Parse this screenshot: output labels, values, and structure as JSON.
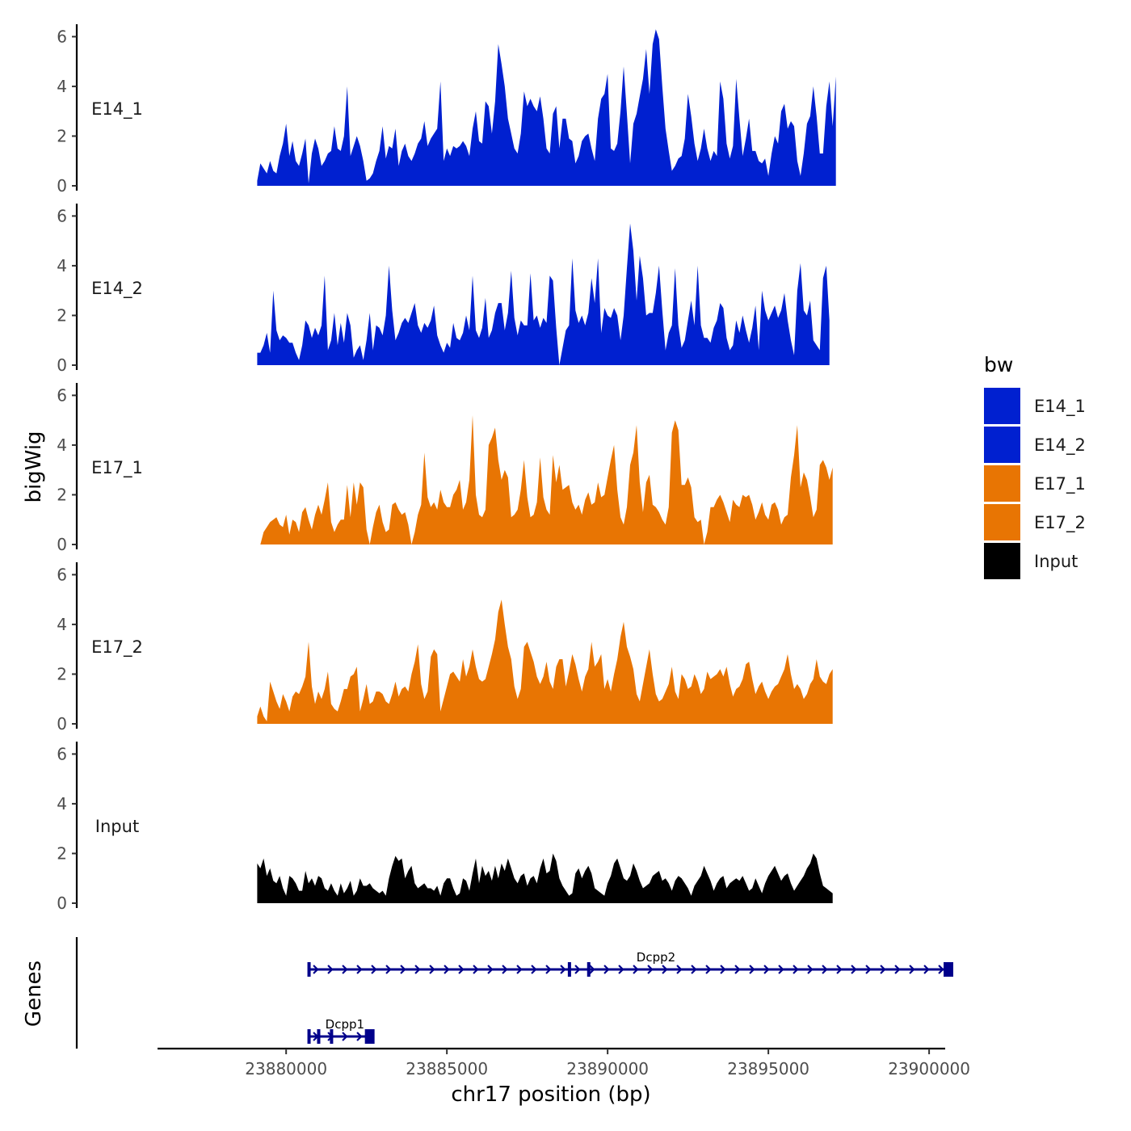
{
  "chart_data": {
    "type": "area",
    "title": "",
    "xlabel": "chr17 position (bp)",
    "ylabel": "bigWig",
    "genes_label": "Genes",
    "xlim": [
      23876000,
      23900500
    ],
    "ylim": [
      0,
      6.5
    ],
    "x_ticks": [
      23880000,
      23885000,
      23890000,
      23895000,
      23900000
    ],
    "x_tick_labels": [
      "23880000",
      "23885000",
      "23890000",
      "23895000",
      "23900000"
    ],
    "y_ticks": [
      0,
      2,
      4,
      6
    ],
    "y_tick_labels": [
      "0",
      "2",
      "4",
      "6"
    ],
    "x_start": 23879100,
    "x_step": 100,
    "legend": {
      "title": "bw",
      "position": "right",
      "entries": [
        {
          "label": "E14_1",
          "color": "#0020d0"
        },
        {
          "label": "E14_2",
          "color": "#0020d0"
        },
        {
          "label": "E17_1",
          "color": "#e87503"
        },
        {
          "label": "E17_2",
          "color": "#e87503"
        },
        {
          "label": "Input",
          "color": "#000000"
        }
      ]
    },
    "series": [
      {
        "name": "E14_1",
        "color": "#0020d0",
        "values": [
          0.2,
          0.9,
          0.7,
          0.5,
          1.0,
          0.6,
          0.5,
          1.2,
          1.7,
          2.5,
          1.2,
          1.8,
          1.0,
          0.8,
          1.3,
          1.9,
          0.1,
          1.3,
          1.9,
          1.5,
          0.8,
          1.0,
          1.3,
          1.4,
          2.4,
          1.5,
          1.4,
          2.0,
          4.0,
          1.2,
          1.6,
          2.0,
          1.6,
          1.0,
          0.2,
          0.3,
          0.5,
          1.0,
          1.4,
          2.4,
          1.1,
          1.6,
          1.5,
          2.3,
          0.8,
          1.4,
          1.7,
          1.2,
          1.0,
          1.3,
          1.7,
          1.9,
          2.6,
          1.6,
          1.9,
          2.1,
          2.3,
          4.2,
          1.0,
          1.5,
          1.2,
          1.6,
          1.5,
          1.6,
          1.8,
          1.6,
          1.2,
          2.3,
          3.0,
          1.8,
          1.7,
          3.4,
          3.2,
          2.1,
          3.4,
          5.7,
          4.9,
          4.0,
          2.7,
          2.1,
          1.5,
          1.3,
          2.1,
          3.8,
          3.2,
          3.5,
          3.2,
          3.0,
          3.6,
          2.7,
          1.5,
          1.3,
          2.9,
          3.2,
          1.5,
          2.7,
          2.7,
          1.9,
          1.8,
          0.9,
          1.2,
          1.8,
          2.0,
          2.1,
          1.5,
          1.0,
          2.7,
          3.5,
          3.7,
          4.5,
          1.5,
          1.4,
          1.7,
          3.0,
          4.8,
          2.9,
          0.9,
          2.5,
          2.9,
          3.6,
          4.3,
          5.5,
          3.7,
          5.7,
          6.3,
          5.9,
          4.0,
          2.3,
          1.4,
          0.6,
          0.8,
          1.1,
          1.2,
          1.9,
          3.7,
          2.8,
          1.7,
          1.0,
          1.5,
          2.3,
          1.5,
          1.0,
          1.4,
          1.2,
          4.2,
          3.5,
          1.7,
          1.1,
          1.6,
          4.3,
          2.7,
          1.2,
          1.9,
          2.7,
          1.4,
          1.4,
          1.0,
          0.9,
          1.1,
          0.4,
          1.3,
          2.0,
          1.7,
          3.0,
          3.3,
          2.3,
          2.6,
          2.4,
          1.0,
          0.4,
          1.3,
          2.5,
          2.8,
          4.0,
          2.8,
          1.3,
          1.3,
          3.2,
          4.2,
          2.4,
          4.4
        ]
      },
      {
        "name": "E14_2",
        "color": "#0020d0",
        "values": [
          0.5,
          0.5,
          0.8,
          1.3,
          0.5,
          3.0,
          1.4,
          1.0,
          1.2,
          1.1,
          0.9,
          0.9,
          0.5,
          0.2,
          0.8,
          1.8,
          1.6,
          1.1,
          1.5,
          1.2,
          1.6,
          3.6,
          0.6,
          1.0,
          2.1,
          0.8,
          1.7,
          0.9,
          2.1,
          1.6,
          0.3,
          0.6,
          0.8,
          0.2,
          1.0,
          2.1,
          0.6,
          1.6,
          1.5,
          1.2,
          2.0,
          4.0,
          2.2,
          1.0,
          1.3,
          1.7,
          1.9,
          1.7,
          2.1,
          2.5,
          1.6,
          1.3,
          1.7,
          1.5,
          1.8,
          2.4,
          1.2,
          0.8,
          0.5,
          0.9,
          0.7,
          1.7,
          1.1,
          1.0,
          1.3,
          2.0,
          1.4,
          3.6,
          1.4,
          1.1,
          1.5,
          2.7,
          1.1,
          1.4,
          2.1,
          2.5,
          2.5,
          1.4,
          2.1,
          3.8,
          1.9,
          1.2,
          1.8,
          1.6,
          1.6,
          3.7,
          1.8,
          2.0,
          1.5,
          1.9,
          1.7,
          3.6,
          3.4,
          1.5,
          0.0,
          0.7,
          1.4,
          1.6,
          4.3,
          2.2,
          1.7,
          2.0,
          1.6,
          2.1,
          3.5,
          2.5,
          4.3,
          1.3,
          2.3,
          2.0,
          1.9,
          2.3,
          2.0,
          1.0,
          2.0,
          3.9,
          5.7,
          4.6,
          2.6,
          4.4,
          3.5,
          2.0,
          2.1,
          2.1,
          2.9,
          4.0,
          2.2,
          0.6,
          1.3,
          1.6,
          3.9,
          1.6,
          0.7,
          1.0,
          1.8,
          2.6,
          1.6,
          4.0,
          1.6,
          1.1,
          1.1,
          0.9,
          1.5,
          1.8,
          2.5,
          2.3,
          1.1,
          0.6,
          0.8,
          1.8,
          1.3,
          2.0,
          1.4,
          0.9,
          1.5,
          2.4,
          0.6,
          3.0,
          2.2,
          1.8,
          2.1,
          2.4,
          1.9,
          2.2,
          2.9,
          1.8,
          1.0,
          0.4,
          3.0,
          4.1,
          2.2,
          2.0,
          2.6,
          1.0,
          0.8,
          0.6,
          3.5,
          4.0,
          1.8
        ]
      },
      {
        "name": "E17_1",
        "color": "#e87503",
        "values": [
          0.0,
          0.0,
          0.5,
          0.7,
          0.9,
          1.0,
          1.1,
          0.8,
          0.7,
          1.2,
          0.4,
          1.0,
          0.9,
          0.5,
          1.3,
          1.5,
          1.0,
          0.6,
          1.2,
          1.6,
          1.2,
          1.8,
          2.5,
          0.9,
          0.5,
          0.8,
          1.0,
          1.0,
          2.4,
          1.1,
          2.5,
          1.6,
          2.5,
          2.3,
          0.6,
          0.0,
          0.7,
          1.3,
          1.6,
          0.9,
          0.5,
          0.6,
          1.6,
          1.7,
          1.4,
          1.2,
          1.3,
          0.8,
          0.0,
          0.5,
          1.2,
          1.6,
          3.7,
          1.9,
          1.5,
          1.7,
          1.4,
          2.2,
          1.7,
          1.5,
          1.5,
          2.0,
          2.2,
          2.6,
          1.4,
          1.7,
          2.6,
          5.2,
          2.0,
          1.2,
          1.1,
          1.4,
          4.0,
          4.3,
          4.7,
          3.4,
          2.6,
          3.0,
          2.7,
          1.1,
          1.2,
          1.4,
          2.2,
          3.4,
          1.9,
          1.1,
          1.2,
          1.7,
          3.5,
          1.9,
          1.4,
          1.2,
          3.6,
          2.5,
          3.2,
          2.2,
          2.3,
          2.4,
          1.7,
          1.4,
          1.6,
          1.2,
          1.8,
          2.1,
          1.6,
          1.7,
          2.5,
          1.9,
          2.0,
          2.7,
          3.4,
          4.0,
          2.2,
          1.1,
          0.8,
          1.5,
          3.2,
          3.7,
          4.8,
          2.5,
          1.3,
          2.5,
          2.8,
          1.6,
          1.5,
          1.3,
          1.0,
          0.8,
          1.5,
          4.5,
          5.0,
          4.6,
          2.4,
          2.4,
          2.7,
          2.3,
          1.1,
          0.9,
          1.0,
          0.0,
          0.5,
          1.5,
          1.5,
          1.8,
          2.0,
          1.7,
          1.3,
          0.9,
          1.8,
          1.6,
          1.5,
          2.0,
          1.9,
          2.0,
          1.6,
          1.0,
          1.3,
          1.7,
          1.2,
          1.0,
          1.6,
          1.7,
          1.4,
          0.8,
          1.1,
          1.2,
          2.7,
          3.6,
          4.8,
          2.3,
          2.9,
          2.6,
          1.9,
          1.1,
          1.4,
          3.2,
          3.4,
          3.1,
          2.6,
          3.1
        ]
      },
      {
        "name": "E17_2",
        "color": "#e87503",
        "values": [
          0.3,
          0.7,
          0.3,
          0.1,
          1.7,
          1.3,
          0.9,
          0.6,
          1.2,
          0.9,
          0.5,
          1.1,
          1.3,
          1.2,
          1.5,
          1.9,
          3.3,
          1.5,
          0.8,
          1.3,
          1.0,
          1.4,
          2.1,
          0.8,
          0.6,
          0.5,
          0.9,
          1.4,
          1.4,
          1.9,
          2.0,
          2.3,
          0.5,
          1.0,
          1.6,
          0.8,
          0.9,
          1.3,
          1.3,
          1.2,
          0.9,
          0.8,
          1.2,
          1.7,
          1.1,
          1.4,
          1.5,
          1.3,
          2.0,
          2.5,
          3.2,
          1.6,
          1.0,
          1.3,
          2.7,
          3.0,
          2.8,
          0.5,
          1.0,
          1.5,
          2.0,
          2.1,
          1.9,
          1.7,
          2.6,
          1.9,
          2.3,
          3.0,
          2.3,
          1.8,
          1.7,
          1.8,
          2.3,
          2.8,
          3.4,
          4.5,
          5.0,
          4.0,
          3.1,
          2.6,
          1.5,
          1.0,
          1.4,
          3.1,
          3.3,
          2.9,
          2.5,
          1.9,
          1.6,
          1.9,
          2.5,
          1.7,
          1.4,
          2.3,
          2.6,
          2.6,
          1.5,
          2.1,
          2.8,
          2.4,
          1.8,
          1.3,
          1.9,
          2.2,
          3.3,
          2.3,
          2.5,
          2.8,
          1.4,
          1.8,
          1.3,
          2.0,
          2.6,
          3.5,
          4.1,
          3.1,
          2.7,
          2.2,
          1.2,
          0.9,
          1.6,
          2.3,
          3.0,
          2.0,
          1.2,
          0.9,
          1.0,
          1.3,
          1.6,
          2.3,
          1.3,
          1.0,
          2.0,
          1.8,
          1.4,
          1.5,
          2.0,
          1.7,
          1.2,
          1.4,
          2.1,
          1.8,
          1.9,
          2.0,
          2.2,
          1.9,
          2.3,
          1.6,
          1.1,
          1.4,
          1.5,
          1.8,
          2.4,
          2.5,
          1.8,
          1.2,
          1.5,
          1.7,
          1.3,
          1.0,
          1.3,
          1.5,
          1.6,
          1.9,
          2.2,
          2.8,
          2.0,
          1.4,
          1.6,
          1.4,
          1.0,
          1.2,
          1.6,
          1.8,
          2.6,
          1.9,
          1.7,
          1.6,
          2.0,
          2.2
        ]
      },
      {
        "name": "Input",
        "color": "#000000",
        "values": [
          1.6,
          1.4,
          1.8,
          1.1,
          1.4,
          0.9,
          0.8,
          1.1,
          0.6,
          0.3,
          1.1,
          1.0,
          0.8,
          0.5,
          0.5,
          1.3,
          0.8,
          1.0,
          0.7,
          1.1,
          1.0,
          0.6,
          0.5,
          0.8,
          0.5,
          0.3,
          0.8,
          0.4,
          0.6,
          0.9,
          0.3,
          0.5,
          1.0,
          0.7,
          0.7,
          0.8,
          0.6,
          0.5,
          0.4,
          0.5,
          0.3,
          1.0,
          1.5,
          1.9,
          1.7,
          1.8,
          1.0,
          1.3,
          1.5,
          0.8,
          0.6,
          0.7,
          0.8,
          0.6,
          0.6,
          0.5,
          0.7,
          0.3,
          0.8,
          1.0,
          1.0,
          0.6,
          0.3,
          0.4,
          1.0,
          0.9,
          0.5,
          1.2,
          1.8,
          0.8,
          1.5,
          1.1,
          1.3,
          0.9,
          1.5,
          1.0,
          1.6,
          1.3,
          1.8,
          1.4,
          1.0,
          0.8,
          1.1,
          1.2,
          0.7,
          1.0,
          1.1,
          0.8,
          1.4,
          1.8,
          1.2,
          1.3,
          2.0,
          1.7,
          1.0,
          0.7,
          0.5,
          0.3,
          0.4,
          1.2,
          1.4,
          1.0,
          1.3,
          1.5,
          1.2,
          0.6,
          0.5,
          0.4,
          0.3,
          0.8,
          1.1,
          1.6,
          1.8,
          1.4,
          1.0,
          0.9,
          1.1,
          1.6,
          1.3,
          0.9,
          0.6,
          0.7,
          0.8,
          1.1,
          1.2,
          1.3,
          0.9,
          1.0,
          0.8,
          0.5,
          0.9,
          1.1,
          1.0,
          0.8,
          0.6,
          0.3,
          0.7,
          0.9,
          1.1,
          1.5,
          1.2,
          0.9,
          0.5,
          0.8,
          1.0,
          1.1,
          0.6,
          0.8,
          0.9,
          1.0,
          0.9,
          1.1,
          0.8,
          0.5,
          0.6,
          1.0,
          0.7,
          0.4,
          0.8,
          1.1,
          1.3,
          1.5,
          1.2,
          0.9,
          1.1,
          1.2,
          0.8,
          0.5,
          0.7,
          0.9,
          1.1,
          1.4,
          1.6,
          2.0,
          1.8,
          1.2,
          0.7,
          0.6,
          0.5,
          0.4
        ]
      }
    ],
    "genes": [
      {
        "name": "Dcpp2",
        "start": 23880700,
        "end": 23900700,
        "strand": "+",
        "row": 0,
        "exons": [
          23880700,
          23888800,
          23889400,
          23900500
        ]
      },
      {
        "name": "Dcpp1",
        "start": 23880700,
        "end": 23882700,
        "strand": "+",
        "row": 1,
        "exons": [
          23880700,
          23881000,
          23881400,
          23882500
        ]
      }
    ]
  }
}
